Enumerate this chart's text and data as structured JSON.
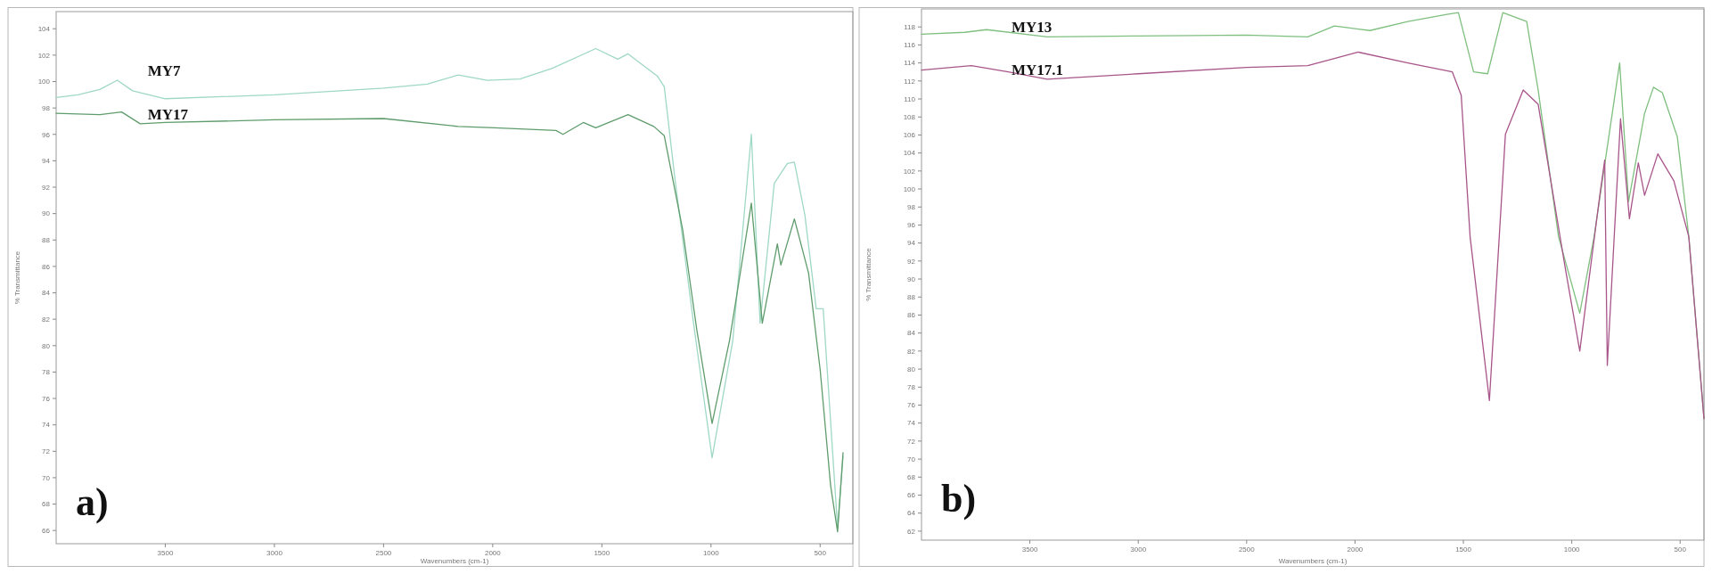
{
  "chart_data": [
    {
      "type": "line",
      "title": "a)",
      "xlabel": "Wavenumbers (cm-1)",
      "ylabel": "% Transmittance",
      "xlim": [
        4000,
        350
      ],
      "xticks": [
        3500,
        3000,
        2500,
        2000,
        1500,
        1000,
        500
      ],
      "ylim": [
        65,
        105.3
      ],
      "yticks": [
        66,
        68,
        70,
        72,
        74,
        76,
        78,
        80,
        82,
        84,
        86,
        88,
        90,
        92,
        94,
        96,
        98,
        100,
        102,
        104
      ],
      "grid": false,
      "series": [
        {
          "name": "MY7",
          "color": "#9fd8c4",
          "x": [
            4000,
            3900,
            3800,
            3720,
            3650,
            3500,
            3000,
            2500,
            2300,
            2158,
            2025,
            1875,
            1727,
            1528,
            1427,
            1380,
            1245,
            1214,
            1165,
            1080,
            995,
            900,
            815,
            775,
            710,
            650,
            618,
            570,
            518,
            486,
            420,
            395
          ],
          "values": [
            98.8,
            99.0,
            99.4,
            100.1,
            99.3,
            98.7,
            99.0,
            99.5,
            99.8,
            100.5,
            100.1,
            100.2,
            101.0,
            102.5,
            101.7,
            102.1,
            100.4,
            99.6,
            92.6,
            81.7,
            71.5,
            80.4,
            96.0,
            81.7,
            92.3,
            93.8,
            93.9,
            89.9,
            82.8,
            82.8,
            66.2,
            71.6
          ]
        },
        {
          "name": "MY17",
          "color": "#5f9c6c",
          "x": [
            4000,
            3800,
            3700,
            3615,
            3500,
            3000,
            2500,
            2158,
            1992,
            1710,
            1678,
            1585,
            1528,
            1380,
            1262,
            1214,
            1130,
            1065,
            995,
            915,
            815,
            765,
            696,
            680,
            618,
            553,
            500,
            452,
            420,
            395
          ],
          "values": [
            97.6,
            97.5,
            97.7,
            96.8,
            96.9,
            97.1,
            97.2,
            96.6,
            96.5,
            96.3,
            96.0,
            96.9,
            96.5,
            97.5,
            96.6,
            95.9,
            88.8,
            81.2,
            74.1,
            80.4,
            90.8,
            81.7,
            87.7,
            86.1,
            89.6,
            85.5,
            78.2,
            69.4,
            65.9,
            71.9
          ]
        }
      ]
    },
    {
      "type": "line",
      "title": "b)",
      "xlabel": "Wavenumbers (cm-1)",
      "ylabel": "% Transmittance",
      "xlim": [
        4000,
        390
      ],
      "xticks": [
        3500,
        3000,
        2500,
        2000,
        1500,
        1000,
        500
      ],
      "ylim": [
        61,
        120
      ],
      "yticks": [
        62,
        64,
        66,
        68,
        70,
        72,
        74,
        76,
        78,
        80,
        82,
        84,
        86,
        88,
        90,
        92,
        94,
        96,
        98,
        100,
        102,
        104,
        106,
        108,
        110,
        112,
        114,
        116,
        118
      ],
      "grid": false,
      "series": [
        {
          "name": "MY13",
          "color": "#7fbf7f",
          "x": [
            4000,
            3800,
            3700,
            3420,
            3000,
            2500,
            2218,
            2095,
            1931,
            1756,
            1576,
            1523,
            1453,
            1388,
            1318,
            1208,
            1155,
            1061,
            963,
            897,
            779,
            738,
            664,
            623,
            582,
            513,
            460,
            390
          ],
          "values": [
            117.2,
            117.4,
            117.7,
            116.9,
            117.0,
            117.1,
            116.9,
            118.1,
            117.6,
            118.6,
            119.4,
            119.6,
            113.0,
            112.8,
            119.6,
            118.6,
            111.0,
            94.7,
            86.2,
            94.7,
            114.0,
            98.6,
            108.4,
            111.3,
            110.7,
            105.8,
            94.7,
            74.5
          ]
        },
        {
          "name": "MY17.1",
          "color": "#a8558a",
          "x": [
            4000,
            3770,
            3600,
            3420,
            3000,
            2500,
            2218,
            2095,
            1985,
            1756,
            1551,
            1510,
            1469,
            1380,
            1306,
            1224,
            1155,
            1032,
            963,
            869,
            848,
            836,
            775,
            734,
            693,
            664,
            603,
            529,
            460,
            390
          ],
          "values": [
            113.2,
            113.7,
            113.0,
            112.2,
            112.8,
            113.5,
            113.7,
            114.5,
            115.2,
            114.0,
            113.0,
            110.4,
            94.7,
            76.5,
            106.1,
            111.0,
            109.4,
            91.5,
            82.0,
            99.6,
            103.2,
            80.4,
            107.8,
            96.7,
            102.9,
            99.3,
            103.9,
            100.9,
            94.7,
            74.5
          ]
        }
      ]
    }
  ]
}
